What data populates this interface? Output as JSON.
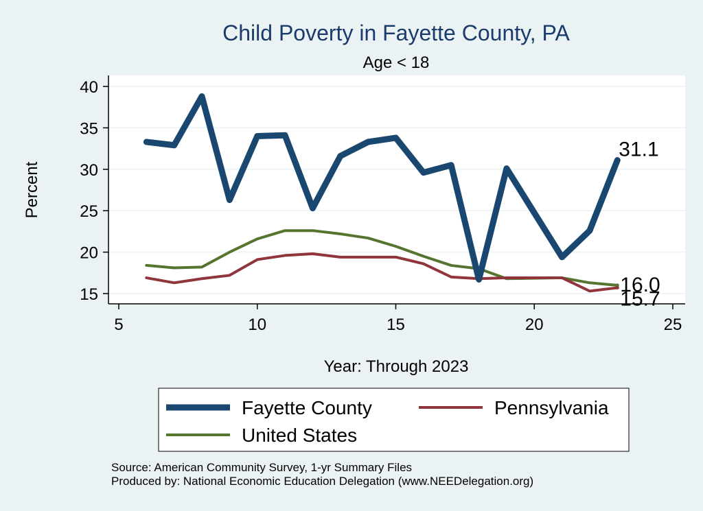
{
  "chart_data": {
    "type": "line",
    "title": "Child Poverty in Fayette County, PA",
    "subtitle": "Age < 18",
    "xlabel": "Year: Through 2023",
    "ylabel": "Percent",
    "xlim": [
      5,
      25
    ],
    "ylim": [
      14,
      41
    ],
    "xticks": [
      5,
      10,
      15,
      20,
      25
    ],
    "yticks": [
      15,
      20,
      25,
      30,
      35,
      40
    ],
    "grid": true,
    "legend_position": "bottom",
    "series": [
      {
        "name": "Fayette County",
        "color": "#1a476f",
        "x": [
          6,
          7,
          8,
          9,
          10,
          11,
          12,
          13,
          14,
          15,
          16,
          17,
          18,
          19,
          21,
          22,
          23
        ],
        "y": [
          33.3,
          32.9,
          38.8,
          26.3,
          34.0,
          34.1,
          25.3,
          31.6,
          33.3,
          33.8,
          29.6,
          30.5,
          16.7,
          30.1,
          19.4,
          22.6,
          31.1
        ],
        "end_label": "31.1"
      },
      {
        "name": "Pennsylvania",
        "color": "#90353b",
        "x": [
          6,
          7,
          8,
          9,
          10,
          11,
          12,
          13,
          14,
          15,
          16,
          17,
          18,
          19,
          21,
          22,
          23
        ],
        "y": [
          16.9,
          16.3,
          16.8,
          17.2,
          19.1,
          19.6,
          19.8,
          19.4,
          19.4,
          19.4,
          18.6,
          17.0,
          16.8,
          16.9,
          16.9,
          15.3,
          15.7
        ],
        "end_label": "15.7"
      },
      {
        "name": "United States",
        "color": "#55752f",
        "x": [
          6,
          7,
          8,
          9,
          10,
          11,
          12,
          13,
          14,
          15,
          16,
          17,
          18,
          19,
          21,
          22,
          23
        ],
        "y": [
          18.4,
          18.1,
          18.2,
          20.0,
          21.6,
          22.6,
          22.6,
          22.2,
          21.7,
          20.7,
          19.5,
          18.4,
          18.0,
          16.8,
          16.9,
          16.3,
          16.0
        ],
        "end_label": "16.0"
      }
    ]
  },
  "footer": {
    "source": "Source: American Community Survey, 1-yr Summary Files",
    "produced_by": "Produced by: National Economic Education Delegation (www.NEEDelegation.org)"
  }
}
